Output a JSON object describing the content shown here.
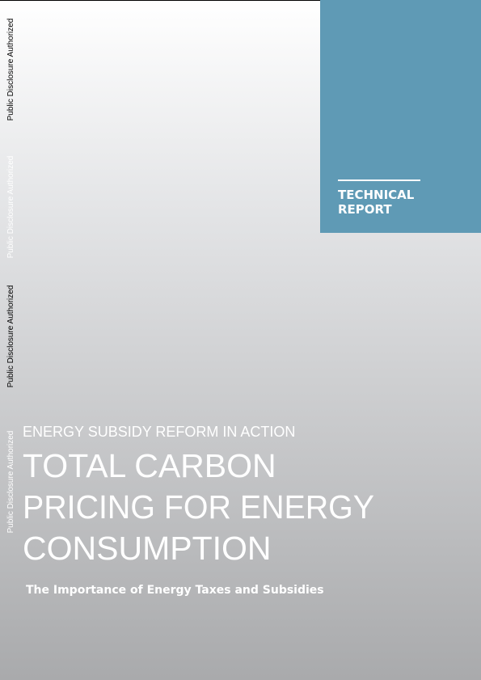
{
  "side_labels": [
    "Public Disclosure Authorized",
    "Public Disclosure Authorized",
    "Public Disclosure Authorized",
    "Public Disclosure Authorized"
  ],
  "report_label": [
    "TECHNICAL",
    "REPORT"
  ],
  "series": "ENERGY SUBSIDY REFORM IN ACTION",
  "title": [
    "TOTAL CARBON",
    "PRICING FOR ENERGY",
    "CONSUMPTION"
  ],
  "subtitle": "The Importance of Energy Taxes and Subsidies"
}
